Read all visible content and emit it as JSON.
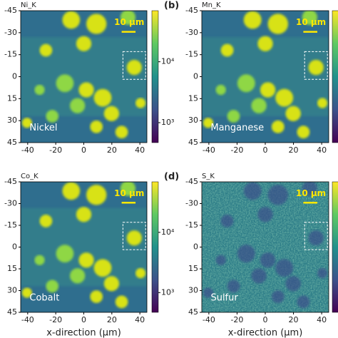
{
  "chart_data": [
    {
      "type": "map",
      "title": "Ni_K",
      "element": "Nickel",
      "scale_bar": "10 μm",
      "xlim": [
        -45,
        45
      ],
      "xticks": [
        -40,
        -20,
        0,
        20,
        40
      ],
      "ylim": [
        -45,
        45
      ],
      "yticks": [
        -45,
        -30,
        -15,
        0,
        15,
        30,
        45
      ],
      "colorbar": {
        "log": true,
        "clim": [
          470,
          69000
        ],
        "ticks": [
          {
            "value": 1000,
            "label": "10³"
          },
          {
            "value": 10000,
            "label": "10⁴"
          }
        ]
      }
    },
    {
      "type": "map",
      "panel_label": "(b)",
      "title": "Mn_K",
      "element": "Manganese",
      "scale_bar": "10 μm",
      "xlim": [
        -45,
        45
      ],
      "xticks": [
        -40,
        -20,
        0,
        20,
        40
      ],
      "ylim": [
        -45,
        45
      ],
      "yticks": [
        -45,
        -30,
        -15,
        0,
        15,
        30,
        45
      ]
    },
    {
      "type": "map",
      "title": "Co_K",
      "element": "Cobalt",
      "scale_bar": "10 μm",
      "xlabel": "x-direction (μm)",
      "xlim": [
        -45,
        45
      ],
      "xticks": [
        -40,
        -20,
        0,
        20,
        40
      ],
      "ylim": [
        -45,
        45
      ],
      "yticks": [
        -45,
        -30,
        -15,
        0,
        15,
        30,
        45
      ],
      "colorbar": {
        "log": true,
        "clim": [
          470,
          69000
        ],
        "ticks": [
          {
            "value": 1000,
            "label": "10³"
          },
          {
            "value": 10000,
            "label": "10⁴"
          }
        ]
      }
    },
    {
      "type": "map",
      "panel_label": "(d)",
      "title": "S_K",
      "element": "Sulfur",
      "scale_bar": "10 μm",
      "xlabel": "x-direction (μm)",
      "xlim": [
        -45,
        45
      ],
      "xticks": [
        -40,
        -20,
        0,
        20,
        40
      ],
      "ylim": [
        -45,
        45
      ],
      "yticks": [
        -45,
        -30,
        -15,
        0,
        15,
        30,
        45
      ]
    }
  ]
}
